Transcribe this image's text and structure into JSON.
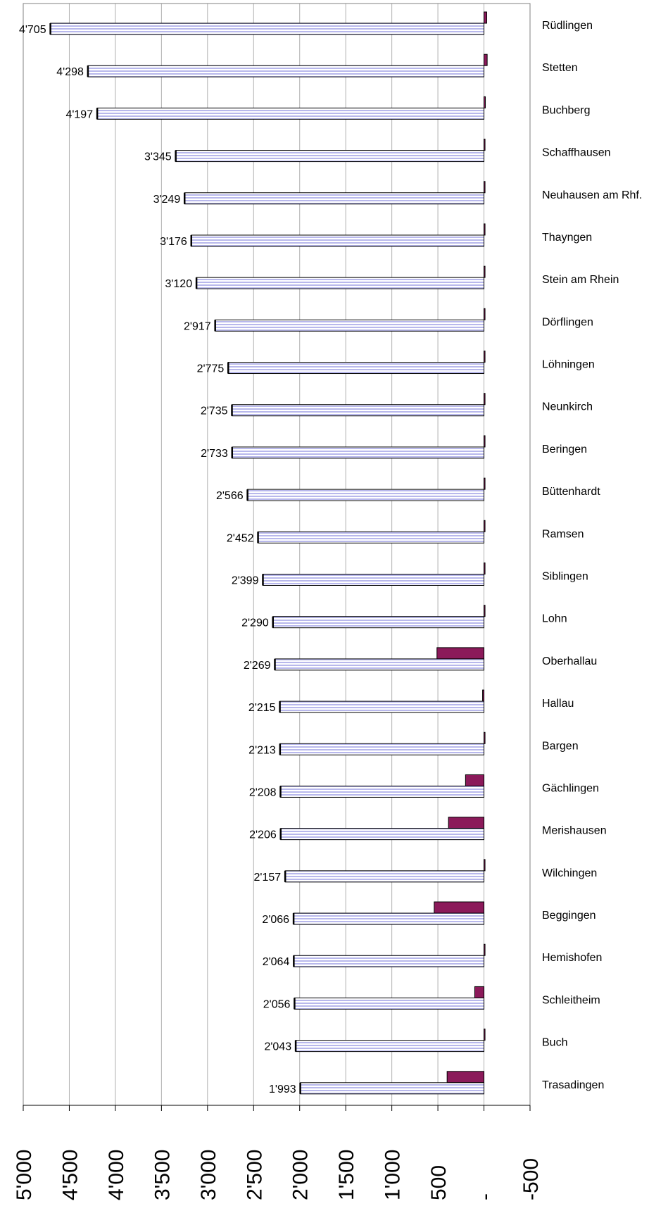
{
  "chart_data": {
    "type": "bar",
    "orientation": "horizontal",
    "x_axis_reversed": true,
    "xlim": [
      -500,
      5000
    ],
    "x_ticks": [
      5000,
      4500,
      4000,
      3500,
      3000,
      2500,
      2000,
      1500,
      1000,
      500,
      0,
      -500
    ],
    "x_tick_labels": [
      "5'000",
      "4'500",
      "4'000",
      "3'500",
      "3'000",
      "2'500",
      "2'000",
      "1'500",
      "1'000",
      "500",
      "-",
      "-500"
    ],
    "grid": "vertical",
    "categories": [
      "Rüdlingen",
      "Stetten",
      "Buchberg",
      "Schaffhausen",
      "Neuhausen am Rhf.",
      "Thayngen",
      "Stein am Rhein",
      "Dörflingen",
      "Löhningen",
      "Neunkirch",
      "Beringen",
      "Büttenhardt",
      "Ramsen",
      "Siblingen",
      "Lohn",
      "Oberhallau",
      "Hallau",
      "Bargen",
      "Gächlingen",
      "Merishausen",
      "Wilchingen",
      "Beggingen",
      "Hemishofen",
      "Schleitheim",
      "Buch",
      "Trasadingen"
    ],
    "series": [
      {
        "color": "#c8c8f0",
        "values": [
          4705,
          4298,
          4197,
          3345,
          3249,
          3176,
          3120,
          2917,
          2775,
          2735,
          2733,
          2566,
          2452,
          2399,
          2290,
          2269,
          2215,
          2213,
          2208,
          2206,
          2157,
          2066,
          2064,
          2056,
          2043,
          1993
        ],
        "value_labels": [
          "4'705",
          "4'298",
          "4'197",
          "3'345",
          "3'249",
          "3'176",
          "3'120",
          "2'917",
          "2'775",
          "2'735",
          "2'733",
          "2'566",
          "2'452",
          "2'399",
          "2'290",
          "2'269",
          "2'215",
          "2'213",
          "2'208",
          "2'206",
          "2'157",
          "2'066",
          "2'064",
          "2'056",
          "2'043",
          "1'993"
        ]
      },
      {
        "color": "#8b1a5a",
        "values": [
          -30,
          -35,
          -15,
          -10,
          -8,
          -10,
          -8,
          -10,
          -8,
          -5,
          -5,
          -5,
          -5,
          -5,
          -5,
          510,
          15,
          -5,
          200,
          385,
          -5,
          540,
          -5,
          100,
          -5,
          400
        ]
      }
    ]
  }
}
